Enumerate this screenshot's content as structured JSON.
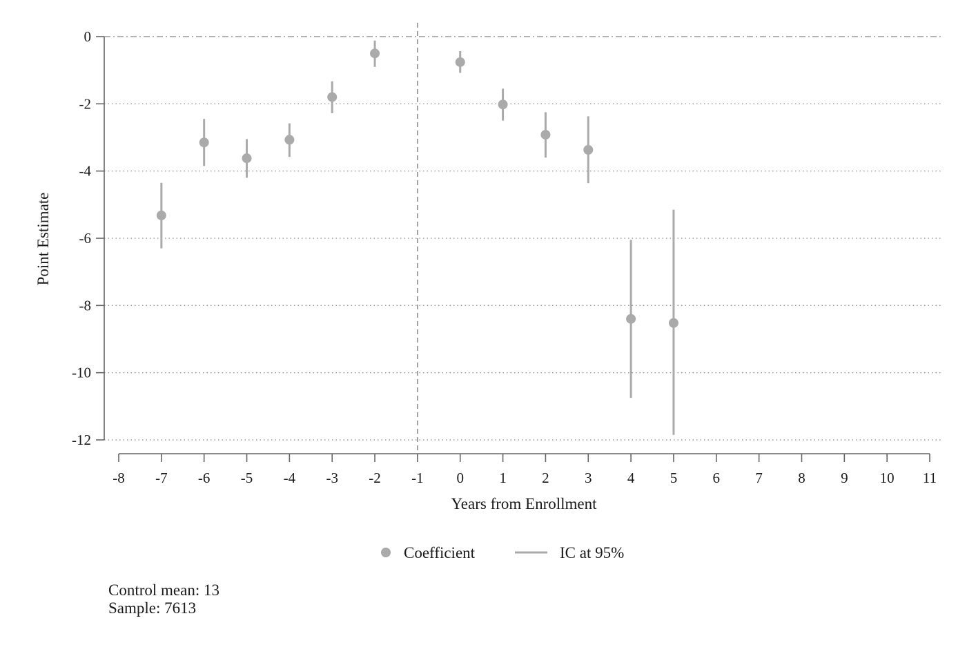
{
  "chart_data": {
    "type": "scatter",
    "title": "",
    "xlabel": "Years from Enrollment",
    "ylabel": "Point Estimate",
    "xlim": [
      -8,
      11
    ],
    "ylim": [
      -12,
      0
    ],
    "xticks": [
      "-8",
      "-7",
      "-6",
      "-5",
      "-4",
      "-3",
      "-2",
      "-1",
      "0",
      "1",
      "2",
      "3",
      "4",
      "5",
      "6",
      "7",
      "8",
      "9",
      "10",
      "11"
    ],
    "yticks": [
      "0",
      "-2",
      "-4",
      "-6",
      "-8",
      "-10",
      "-12"
    ],
    "grid": "horizontal dotted",
    "reference_lines": {
      "x": -1,
      "y": 0
    },
    "legend_position": "bottom",
    "series": [
      {
        "name": "Coefficient",
        "style": "point",
        "x": [
          -7,
          -6,
          -5,
          -4,
          -3,
          -2,
          0,
          1,
          2,
          3,
          4,
          5
        ],
        "values": [
          -5.32,
          -3.15,
          -3.62,
          -3.07,
          -1.8,
          -0.5,
          -0.76,
          -2.02,
          -2.92,
          -3.37,
          -8.4,
          -8.52
        ]
      },
      {
        "name": "IC at 95%",
        "style": "range",
        "x": [
          -7,
          -6,
          -5,
          -4,
          -3,
          -2,
          0,
          1,
          2,
          3,
          4,
          5
        ],
        "lower": [
          -6.3,
          -3.85,
          -4.2,
          -3.58,
          -2.28,
          -0.9,
          -1.08,
          -2.5,
          -3.6,
          -4.36,
          -10.75,
          -11.85
        ],
        "upper": [
          -4.35,
          -2.45,
          -3.05,
          -2.58,
          -1.33,
          -0.12,
          -0.43,
          -1.55,
          -2.25,
          -2.37,
          -6.05,
          -5.15
        ]
      }
    ],
    "color": "#aaaaaa"
  },
  "notes": {
    "control_mean": "Control mean: 13",
    "sample": "Sample: 7613"
  }
}
